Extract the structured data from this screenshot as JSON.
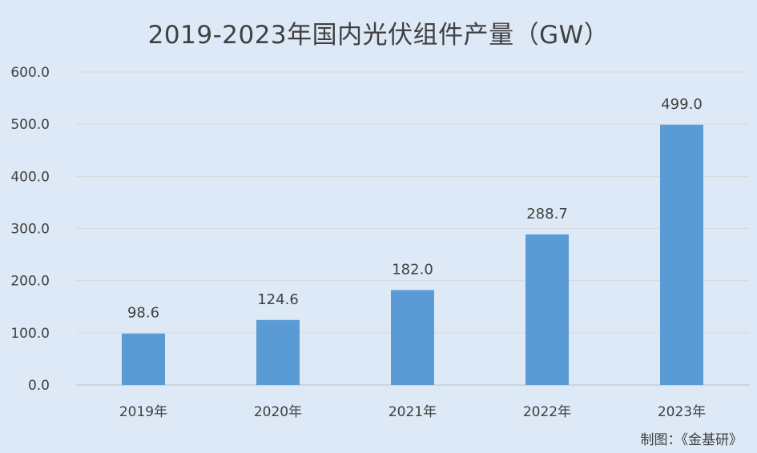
{
  "chart_data": {
    "type": "bar",
    "title": "2019-2023年国内光伏组件产量（GW）",
    "categories": [
      "2019年",
      "2020年",
      "2021年",
      "2022年",
      "2023年"
    ],
    "values": [
      98.6,
      124.6,
      182.0,
      288.7,
      499.0
    ],
    "value_labels": [
      "98.6",
      "124.6",
      "182.0",
      "288.7",
      "499.0"
    ],
    "ylim": [
      0,
      600
    ],
    "yticks": [
      "0.0",
      "100.0",
      "200.0",
      "300.0",
      "400.0",
      "500.0",
      "600.0"
    ],
    "grid": true,
    "legend": "none",
    "bar_color": "#5b9bd5"
  },
  "credit": "制图：《金基研》"
}
